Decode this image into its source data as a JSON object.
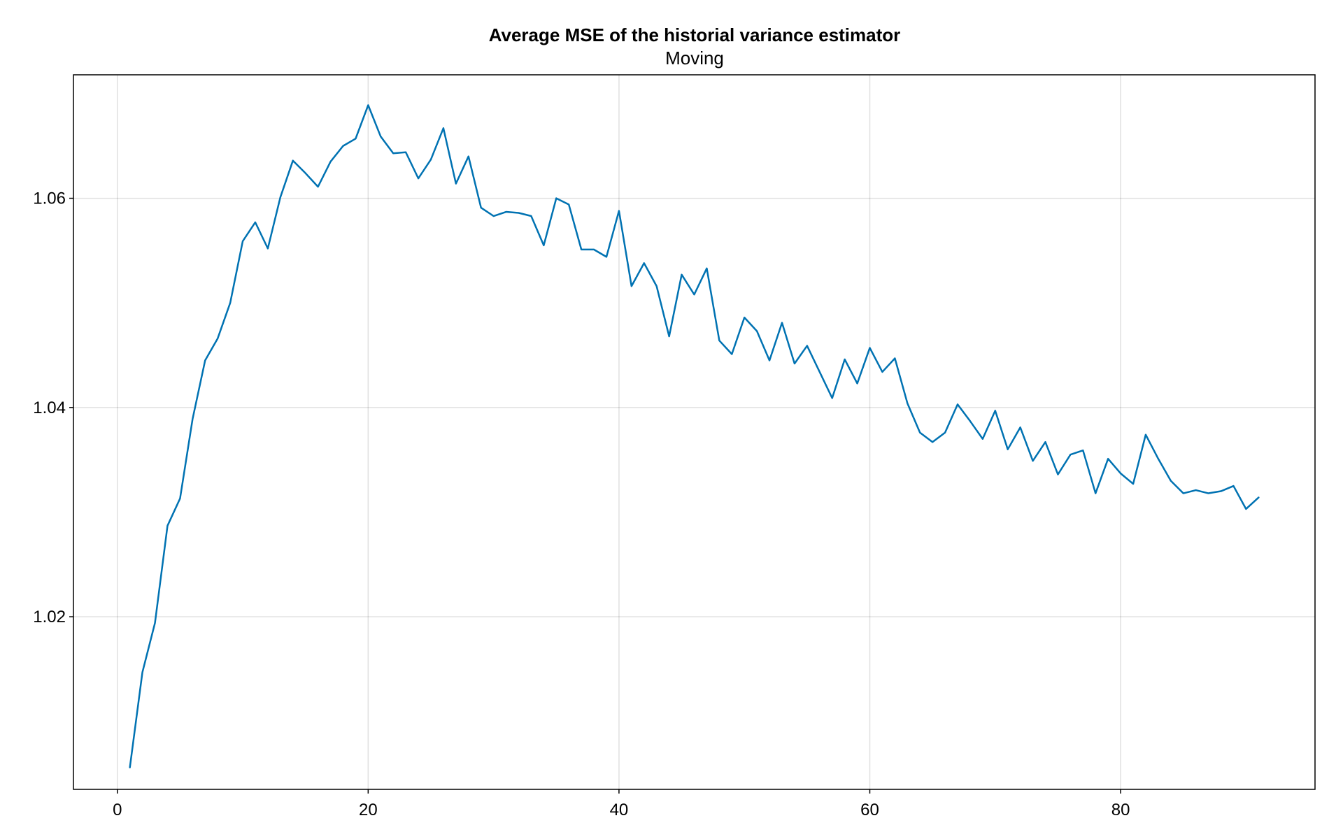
{
  "chart_data": {
    "type": "line",
    "title": "Average MSE of the historial variance estimator",
    "subtitle": "Moving",
    "xlabel": "",
    "ylabel": "",
    "xlim": [
      -3.5,
      95.5
    ],
    "ylim": [
      1.0035,
      1.0718
    ],
    "x_ticks": [
      0,
      20,
      40,
      60,
      80
    ],
    "x_tick_labels": [
      "0",
      "20",
      "40",
      "60",
      "80"
    ],
    "y_ticks": [
      1.02,
      1.04,
      1.06
    ],
    "y_tick_labels": [
      "1.02",
      "1.04",
      "1.06"
    ],
    "grid": true,
    "legend": "none",
    "series": [
      {
        "color": "#0072b2",
        "x": [
          1,
          2,
          3,
          4,
          5,
          6,
          7,
          8,
          9,
          10,
          11,
          12,
          13,
          14,
          15,
          16,
          17,
          18,
          19,
          20,
          21,
          22,
          23,
          24,
          25,
          26,
          27,
          28,
          29,
          30,
          31,
          32,
          33,
          34,
          35,
          36,
          37,
          38,
          39,
          40,
          41,
          42,
          43,
          44,
          45,
          46,
          47,
          48,
          49,
          50,
          51,
          52,
          53,
          54,
          55,
          56,
          57,
          58,
          59,
          60,
          61,
          62,
          63,
          64,
          65,
          66,
          67,
          68,
          69,
          70,
          71,
          72,
          73,
          74,
          75,
          76,
          77,
          78,
          79,
          80,
          81,
          82,
          83,
          84,
          85,
          86,
          87,
          88,
          89,
          90,
          91
        ],
        "values": [
          1.0056,
          1.0147,
          1.0194,
          1.0287,
          1.0313,
          1.0389,
          1.0445,
          1.0466,
          1.05,
          1.0559,
          1.0577,
          1.0552,
          1.0601,
          1.0636,
          1.0624,
          1.0611,
          1.0635,
          1.065,
          1.0657,
          1.0689,
          1.0659,
          1.0643,
          1.0644,
          1.0619,
          1.0637,
          1.0667,
          1.0614,
          1.064,
          1.0591,
          1.0583,
          1.0587,
          1.0586,
          1.0583,
          1.0555,
          1.06,
          1.0594,
          1.0551,
          1.0551,
          1.0544,
          1.0588,
          1.0516,
          1.0538,
          1.0516,
          1.0468,
          1.0527,
          1.0508,
          1.0533,
          1.0464,
          1.0451,
          1.0486,
          1.0473,
          1.0445,
          1.0481,
          1.0442,
          1.0459,
          1.0434,
          1.0409,
          1.0446,
          1.0423,
          1.0457,
          1.0434,
          1.0447,
          1.0404,
          1.0376,
          1.0367,
          1.0376,
          1.0403,
          1.0387,
          1.037,
          1.0397,
          1.036,
          1.0381,
          1.0349,
          1.0367,
          1.0336,
          1.0355,
          1.0359,
          1.0318,
          1.0351,
          1.0337,
          1.0327,
          1.0374,
          1.0351,
          1.033,
          1.0318,
          1.0321,
          1.0318,
          1.032,
          1.0325,
          1.0303,
          1.0314
        ]
      }
    ]
  }
}
